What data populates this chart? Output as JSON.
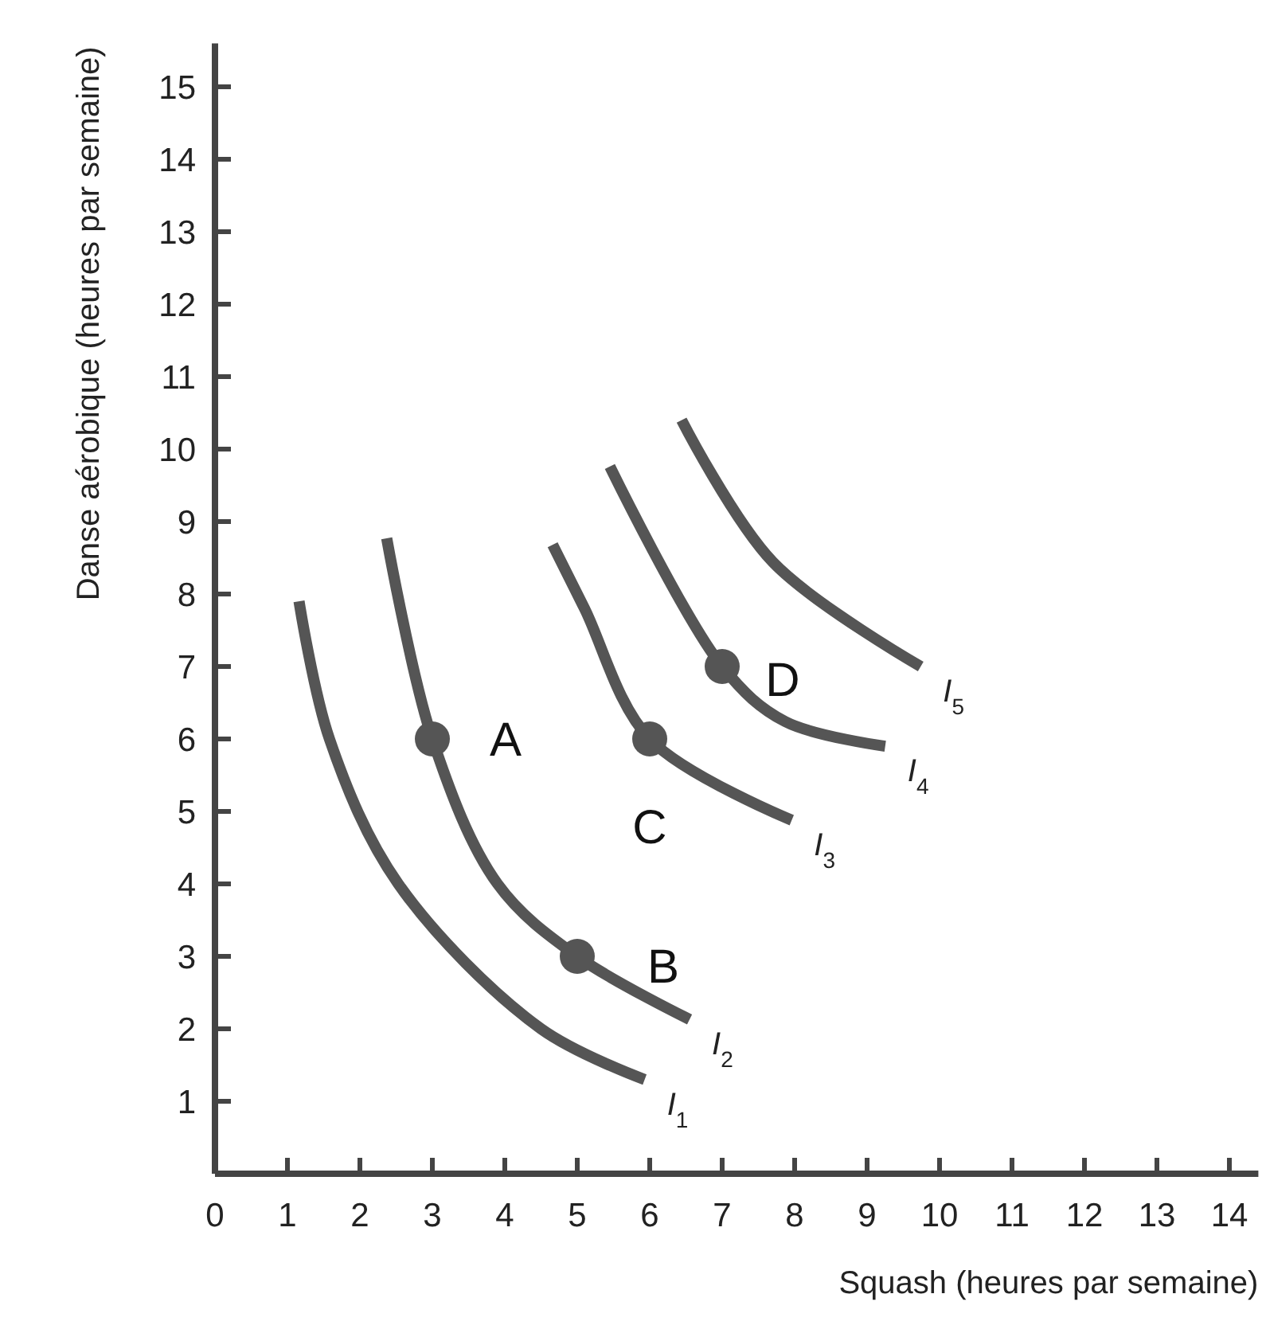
{
  "chart_data": {
    "type": "line",
    "xlabel": "Squash (heures par semaine)",
    "ylabel": "Danse aérobique (heures par semaine)",
    "xlim": [
      0,
      14.4
    ],
    "ylim": [
      0,
      15.6
    ],
    "xticks": [
      0,
      1,
      2,
      3,
      4,
      5,
      6,
      7,
      8,
      9,
      10,
      11,
      12,
      13,
      14
    ],
    "yticks": [
      1,
      2,
      3,
      4,
      5,
      6,
      7,
      8,
      9,
      10,
      11,
      12,
      13,
      14,
      15
    ],
    "grid": false,
    "marker": "none",
    "line_style": "solid",
    "series": [
      {
        "name": "I$_{1}$",
        "color": "#555555",
        "x": [
          1.16,
          1.58,
          2.53,
          4.5,
          5.93
        ],
        "values": [
          7.9,
          6,
          4,
          2,
          1.3
        ]
      },
      {
        "name": "I$_{2}$",
        "color": "#555555",
        "x": [
          2.37,
          3,
          3.9,
          5,
          6.55
        ],
        "values": [
          8.77,
          6,
          4,
          3,
          2.13
        ]
      },
      {
        "name": "I$_{3}$",
        "color": "#555555",
        "x": [
          4.66,
          5.1,
          6,
          7.96
        ],
        "values": [
          8.68,
          7.8,
          6,
          4.88
        ]
      },
      {
        "name": "I$_{4}$",
        "color": "#555555",
        "x": [
          5.45,
          7,
          7.87,
          9.25
        ],
        "values": [
          9.76,
          7,
          6.24,
          5.9
        ]
      },
      {
        "name": "I$_{5}$",
        "color": "#555555",
        "x": [
          6.44,
          7.7,
          9.74
        ],
        "values": [
          10.4,
          8.44,
          7
        ]
      },
      {
        "type": "scatter",
        "marker": "circle",
        "color": "#555555",
        "x": [
          3,
          5,
          6,
          7
        ],
        "values": [
          6,
          3,
          6,
          7
        ]
      }
    ],
    "annotations": [
      {
        "text": "A",
        "x": 3,
        "y": 6
      },
      {
        "text": "B",
        "x": 5,
        "y": 3
      },
      {
        "text": "C",
        "x": 6,
        "y": 6
      },
      {
        "text": "D",
        "x": 7,
        "y": 7
      }
    ]
  }
}
